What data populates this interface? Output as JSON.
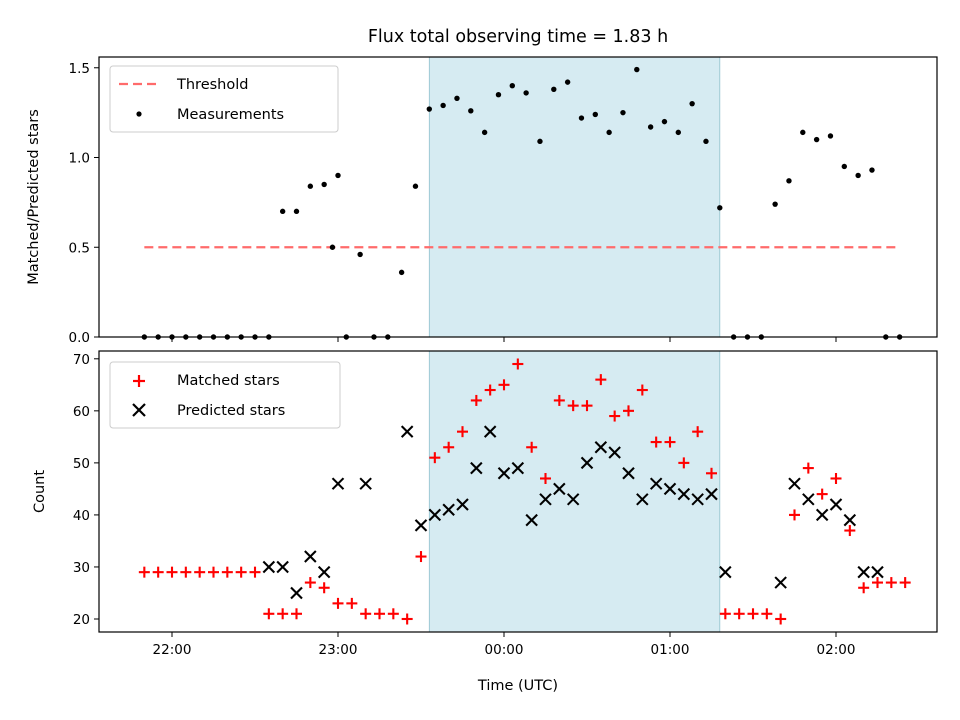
{
  "chart_data": {
    "title": "Flux total observing time = 1.83 h",
    "xlabel": "Time (UTC)",
    "x_tick_labels": [
      "22:00",
      "23:00",
      "00:00",
      "01:00",
      "02:00"
    ],
    "highlight_span": {
      "start": "23:33",
      "end": "01:18",
      "color": "#add8e6"
    },
    "panels": [
      {
        "type": "scatter",
        "ylabel": "Matched/Predicted stars",
        "ylim": [
          0,
          1.56
        ],
        "y_ticks": [
          0.0,
          0.5,
          1.0,
          1.5
        ],
        "y_tick_labels": [
          "0.0",
          "0.5",
          "1.0",
          "1.5"
        ],
        "threshold": {
          "label": "Threshold",
          "value": 0.5,
          "from": "21:50",
          "to": "02:22",
          "color": "#ff6b6b"
        },
        "legend": [
          {
            "label": "Threshold",
            "kind": "dashed-line",
            "color": "#ff6b6b"
          },
          {
            "label": "Measurements",
            "kind": "dot",
            "color": "#000000"
          }
        ],
        "series": [
          {
            "name": "Measurements",
            "color": "#000000",
            "points": [
              [
                "21:50",
                0.0
              ],
              [
                "21:55",
                0.0
              ],
              [
                "22:00",
                0.0
              ],
              [
                "22:05",
                0.0
              ],
              [
                "22:10",
                0.0
              ],
              [
                "22:15",
                0.0
              ],
              [
                "22:20",
                0.0
              ],
              [
                "22:25",
                0.0
              ],
              [
                "22:30",
                0.0
              ],
              [
                "22:35",
                0.0
              ],
              [
                "22:40",
                0.7
              ],
              [
                "22:45",
                0.7
              ],
              [
                "22:50",
                0.84
              ],
              [
                "22:55",
                0.85
              ],
              [
                "23:00",
                0.9
              ],
              [
                "22:58",
                0.5
              ],
              [
                "23:03",
                0.0
              ],
              [
                "23:08",
                0.46
              ],
              [
                "23:13",
                0.0
              ],
              [
                "23:18",
                0.0
              ],
              [
                "23:23",
                0.36
              ],
              [
                "23:28",
                0.84
              ],
              [
                "23:33",
                1.27
              ],
              [
                "23:38",
                1.29
              ],
              [
                "23:43",
                1.33
              ],
              [
                "23:48",
                1.26
              ],
              [
                "23:53",
                1.14
              ],
              [
                "23:58",
                1.35
              ],
              [
                "00:03",
                1.4
              ],
              [
                "00:08",
                1.36
              ],
              [
                "00:13",
                1.09
              ],
              [
                "00:18",
                1.38
              ],
              [
                "00:23",
                1.42
              ],
              [
                "00:28",
                1.22
              ],
              [
                "00:33",
                1.24
              ],
              [
                "00:38",
                1.14
              ],
              [
                "00:43",
                1.25
              ],
              [
                "00:48",
                1.49
              ],
              [
                "00:53",
                1.17
              ],
              [
                "00:58",
                1.2
              ],
              [
                "01:03",
                1.14
              ],
              [
                "01:08",
                1.3
              ],
              [
                "01:13",
                1.09
              ],
              [
                "01:18",
                0.72
              ],
              [
                "01:23",
                0.0
              ],
              [
                "01:28",
                0.0
              ],
              [
                "01:33",
                0.0
              ],
              [
                "01:38",
                0.74
              ],
              [
                "01:43",
                0.87
              ],
              [
                "01:48",
                1.14
              ],
              [
                "01:53",
                1.1
              ],
              [
                "01:58",
                1.12
              ],
              [
                "02:03",
                0.95
              ],
              [
                "02:08",
                0.9
              ],
              [
                "02:13",
                0.93
              ],
              [
                "02:18",
                0.0
              ],
              [
                "02:23",
                0.0
              ]
            ]
          }
        ]
      },
      {
        "type": "scatter",
        "ylabel": "Count",
        "ylim": [
          17.5,
          71.5
        ],
        "y_ticks": [
          20,
          30,
          40,
          50,
          60,
          70
        ],
        "y_tick_labels": [
          "20",
          "30",
          "40",
          "50",
          "60",
          "70"
        ],
        "legend": [
          {
            "label": "Matched stars",
            "kind": "plus",
            "color": "#ff0000"
          },
          {
            "label": "Predicted stars",
            "kind": "x",
            "color": "#000000"
          }
        ],
        "series": [
          {
            "name": "Matched stars",
            "marker": "plus",
            "color": "#ff0000",
            "points": [
              [
                "21:50",
                29
              ],
              [
                "21:55",
                29
              ],
              [
                "22:00",
                29
              ],
              [
                "22:05",
                29
              ],
              [
                "22:10",
                29
              ],
              [
                "22:15",
                29
              ],
              [
                "22:20",
                29
              ],
              [
                "22:25",
                29
              ],
              [
                "22:30",
                29
              ],
              [
                "22:35",
                21
              ],
              [
                "22:40",
                21
              ],
              [
                "22:45",
                21
              ],
              [
                "22:50",
                27
              ],
              [
                "22:55",
                26
              ],
              [
                "23:00",
                23
              ],
              [
                "23:05",
                23
              ],
              [
                "23:10",
                21
              ],
              [
                "23:15",
                21
              ],
              [
                "23:20",
                21
              ],
              [
                "23:25",
                20
              ],
              [
                "23:30",
                32
              ],
              [
                "23:35",
                51
              ],
              [
                "23:40",
                53
              ],
              [
                "23:45",
                56
              ],
              [
                "23:50",
                62
              ],
              [
                "23:55",
                64
              ],
              [
                "00:00",
                65
              ],
              [
                "00:05",
                69
              ],
              [
                "00:10",
                53
              ],
              [
                "00:15",
                47
              ],
              [
                "00:20",
                62
              ],
              [
                "00:25",
                61
              ],
              [
                "00:30",
                61
              ],
              [
                "00:35",
                66
              ],
              [
                "00:40",
                59
              ],
              [
                "00:45",
                60
              ],
              [
                "00:50",
                64
              ],
              [
                "00:55",
                54
              ],
              [
                "01:00",
                54
              ],
              [
                "01:05",
                50
              ],
              [
                "01:10",
                56
              ],
              [
                "01:15",
                48
              ],
              [
                "01:20",
                21
              ],
              [
                "01:25",
                21
              ],
              [
                "01:30",
                21
              ],
              [
                "01:35",
                21
              ],
              [
                "01:40",
                20
              ],
              [
                "01:45",
                40
              ],
              [
                "01:50",
                49
              ],
              [
                "01:55",
                44
              ],
              [
                "02:00",
                47
              ],
              [
                "02:05",
                37
              ],
              [
                "02:10",
                26
              ],
              [
                "02:15",
                27
              ],
              [
                "02:20",
                27
              ],
              [
                "02:25",
                27
              ]
            ]
          },
          {
            "name": "Predicted stars",
            "marker": "x",
            "color": "#000000",
            "points": [
              [
                "22:35",
                30
              ],
              [
                "22:40",
                30
              ],
              [
                "22:45",
                25
              ],
              [
                "22:50",
                32
              ],
              [
                "22:55",
                29
              ],
              [
                "23:00",
                46
              ],
              [
                "23:10",
                46
              ],
              [
                "23:25",
                56
              ],
              [
                "23:30",
                38
              ],
              [
                "23:35",
                40
              ],
              [
                "23:40",
                41
              ],
              [
                "23:45",
                42
              ],
              [
                "23:50",
                49
              ],
              [
                "23:55",
                56
              ],
              [
                "00:00",
                48
              ],
              [
                "00:05",
                49
              ],
              [
                "00:10",
                39
              ],
              [
                "00:15",
                43
              ],
              [
                "00:20",
                45
              ],
              [
                "00:25",
                43
              ],
              [
                "00:30",
                50
              ],
              [
                "00:35",
                53
              ],
              [
                "00:40",
                52
              ],
              [
                "00:45",
                48
              ],
              [
                "00:50",
                43
              ],
              [
                "00:55",
                46
              ],
              [
                "01:00",
                45
              ],
              [
                "01:05",
                44
              ],
              [
                "01:10",
                43
              ],
              [
                "01:15",
                44
              ],
              [
                "01:20",
                29
              ],
              [
                "01:40",
                27
              ],
              [
                "01:45",
                46
              ],
              [
                "01:50",
                43
              ],
              [
                "01:55",
                40
              ],
              [
                "02:00",
                42
              ],
              [
                "02:05",
                39
              ],
              [
                "02:10",
                29
              ],
              [
                "02:15",
                29
              ]
            ]
          }
        ]
      }
    ]
  }
}
